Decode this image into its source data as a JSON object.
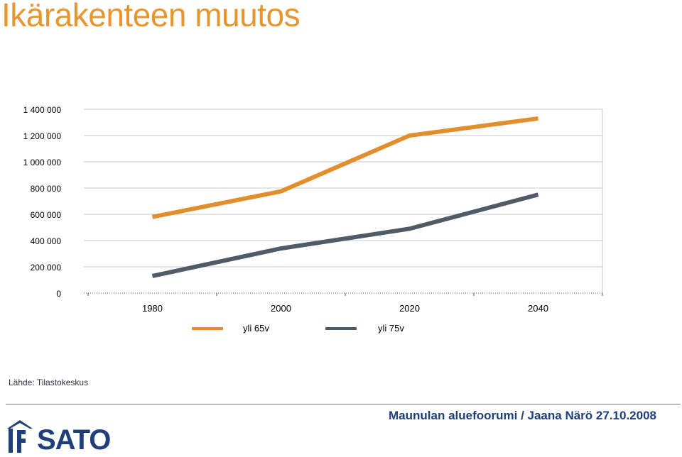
{
  "page": {
    "title": "Ikärakenteen muutos",
    "source": "Lähde: Tilastokeskus",
    "footer": "Maunulan aluefoorumi / Jaana Närö 27.10.2008",
    "logo_text": "SATO"
  },
  "colors": {
    "title": "#e7962f",
    "footer": "#1f3f7a"
  },
  "chart_data": {
    "type": "line",
    "categories": [
      "1980",
      "2000",
      "2020",
      "2040"
    ],
    "series": [
      {
        "name": "yli 65v",
        "color": "#e38e2c",
        "values": [
          580000,
          775000,
          1200000,
          1330000
        ]
      },
      {
        "name": "yli 75v",
        "color": "#4f5b66",
        "values": [
          130000,
          340000,
          490000,
          750000
        ]
      }
    ],
    "ylim": [
      0,
      1400000
    ],
    "yticks": [
      0,
      200000,
      400000,
      600000,
      800000,
      1000000,
      1200000,
      1400000
    ],
    "ytick_labels": [
      "0",
      "200 000",
      "400 000",
      "600 000",
      "800 000",
      "1 000 000",
      "1 200 000",
      "1 400 000"
    ],
    "grid": true,
    "legend_position": "bottom"
  }
}
